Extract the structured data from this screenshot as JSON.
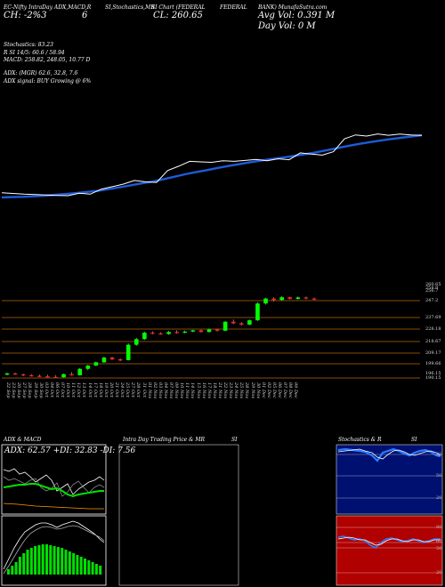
{
  "header": {
    "line1_left": "EC-Nifty IntraDay ADX,MACD,R",
    "line1_mid": "SI,Stochastics,MR",
    "line1_mid2": "SI Chart (FEDERAL",
    "line1_right": "FEDERAL",
    "line1_right2": "BANK) MunafaSutra.com",
    "ch_big": "CH: -2%3",
    "cl_big": "CL: 260.65",
    "arrow_glyph": "6",
    "avg_vol": "Avg Vol: 0.391 M",
    "day_vol": "Day Vol: 0   M"
  },
  "info": {
    "stoch": "Stochastics: 83.23",
    "rsi": "R        SI 14/5: 60.6 / 58.94",
    "macd": "MACD: 258.82, 248.05, 10.77 D",
    "adx": "ADX:                     (MGR) 62.6, 32.8, 7.6",
    "adx_signal": "ADX  signal:                     BUY Growing @ 6%"
  },
  "price_labels": [
    "260.65",
    "258.8",
    "256.7",
    "247.2",
    "237.69",
    "228.18",
    "218.67",
    "209.17",
    "199.66",
    "196.15",
    "190.15"
  ],
  "dates": [
    "22 Sep",
    "23 Sep",
    "26 Sep",
    "27 Sep",
    "28 Sep",
    "29 Sep",
    "30 Sep",
    "03 Oct",
    "04 Oct",
    "06 Oct",
    "07 Oct",
    "10 Oct",
    "11 Oct",
    "12 Oct",
    "13 Oct",
    "14 Oct",
    "17 Oct",
    "18 Oct",
    "19 Oct",
    "20 Oct",
    "21 Oct",
    "24 Oct",
    "25 Oct",
    "27 Oct",
    "28 Oct",
    "31 Oct",
    "01 Nov",
    "02 Nov",
    "03 Nov",
    "04 Nov",
    "07 Nov",
    "09 Nov",
    "10 Nov",
    "11 Nov",
    "14 Nov",
    "15 Nov",
    "16 Nov",
    "17 Nov",
    "18 Nov",
    "21 Nov",
    "22 Nov",
    "23 Nov",
    "24 Nov",
    "25 Nov",
    "28 Nov",
    "29 Nov",
    "30 Nov",
    "01 Dec",
    "02 Dec",
    "05 Dec",
    "06 Dec",
    "07 Dec",
    "08 Dec",
    "09 Dec"
  ],
  "panels": {
    "adx_title": "ADX  & MACD",
    "adx_values": "ADX: 62.57 +DI: 32.83 -DI: 7.56",
    "intraday_title": "Intra  Day Trading Price  & MR",
    "intraday_title2": "SI",
    "stoch_title": "Stochastics & R",
    "stoch_title2": "SI",
    "stoch_labels": [
      "80",
      "50",
      "20"
    ],
    "rsi_labels": [
      "80",
      "60",
      "50",
      "20"
    ]
  },
  "colors": {
    "sma_line": "#1e5bd8",
    "price_line": "#ffffff",
    "candle_up": "#00ff00",
    "candle_down": "#ff2020",
    "level_line": "#b8660b",
    "stoch_bg": "#001070",
    "rsi_bg": "#b00000",
    "adx_green": "#00e000",
    "adx_orange": "#ff9a00"
  },
  "chart_data": {
    "type": "line",
    "candles": [
      [
        196.2,
        197.5,
        195.8,
        196.9
      ],
      [
        196.9,
        197.3,
        196.1,
        196.4
      ],
      [
        196.4,
        196.8,
        195.4,
        195.9
      ],
      [
        195.9,
        196.5,
        195.2,
        195.6
      ],
      [
        195.6,
        196.3,
        194.9,
        195.3
      ],
      [
        195.3,
        196.2,
        194.8,
        195.0
      ],
      [
        195.0,
        196.0,
        194.4,
        194.8
      ],
      [
        194.8,
        196.9,
        194.6,
        196.5
      ],
      [
        196.5,
        197.6,
        195.7,
        195.9
      ],
      [
        195.9,
        199.8,
        195.8,
        199.4
      ],
      [
        199.4,
        201.6,
        198.6,
        201.2
      ],
      [
        201.2,
        203.4,
        200.9,
        203.0
      ],
      [
        203.0,
        206.2,
        202.6,
        205.6
      ],
      [
        205.6,
        206.0,
        204.2,
        204.6
      ],
      [
        204.6,
        205.2,
        203.6,
        204.2
      ],
      [
        204.2,
        213.4,
        204.0,
        212.6
      ],
      [
        212.6,
        216.4,
        212.0,
        215.7
      ],
      [
        215.7,
        219.8,
        215.2,
        219.2
      ],
      [
        219.2,
        219.9,
        218.3,
        218.8
      ],
      [
        218.8,
        219.4,
        218.1,
        218.5
      ],
      [
        218.5,
        220.2,
        218.0,
        219.6
      ],
      [
        219.6,
        220.5,
        218.7,
        219.2
      ],
      [
        219.2,
        220.4,
        218.8,
        219.8
      ],
      [
        219.8,
        220.8,
        219.4,
        220.5
      ],
      [
        220.5,
        220.9,
        219.3,
        219.6
      ],
      [
        219.6,
        221.4,
        219.2,
        221.0
      ],
      [
        221.0,
        221.3,
        219.8,
        220.3
      ],
      [
        220.3,
        225.6,
        220.0,
        225.2
      ],
      [
        225.2,
        226.4,
        223.9,
        224.3
      ],
      [
        224.3,
        225.0,
        223.2,
        223.6
      ],
      [
        223.6,
        226.4,
        223.4,
        226.0
      ],
      [
        226.0,
        236.0,
        225.6,
        235.2
      ],
      [
        235.2,
        238.4,
        234.6,
        237.9
      ],
      [
        237.9,
        238.6,
        236.4,
        237.1
      ],
      [
        237.1,
        239.2,
        236.8,
        238.6
      ],
      [
        238.6,
        238.9,
        237.4,
        237.7
      ],
      [
        237.7,
        239.1,
        237.3,
        238.5
      ],
      [
        238.5,
        239.0,
        237.5,
        237.9
      ],
      [
        237.9,
        238.5,
        237.1,
        237.6
      ]
    ],
    "sma": [
      191.5,
      191.7,
      191.9,
      192.2,
      192.6,
      193.1,
      193.6,
      194.2,
      194.9,
      195.6,
      196.6,
      197.7,
      198.9,
      200.0,
      201.1,
      202.5,
      204.0,
      205.5,
      206.8,
      208.0,
      209.3,
      210.5,
      211.6,
      212.7,
      213.8,
      214.7,
      215.6,
      216.5,
      217.5,
      218.6,
      219.9,
      221.2,
      222.5,
      223.7,
      224.8,
      225.8,
      226.7,
      227.6,
      228.4,
      229.2
    ]
  }
}
